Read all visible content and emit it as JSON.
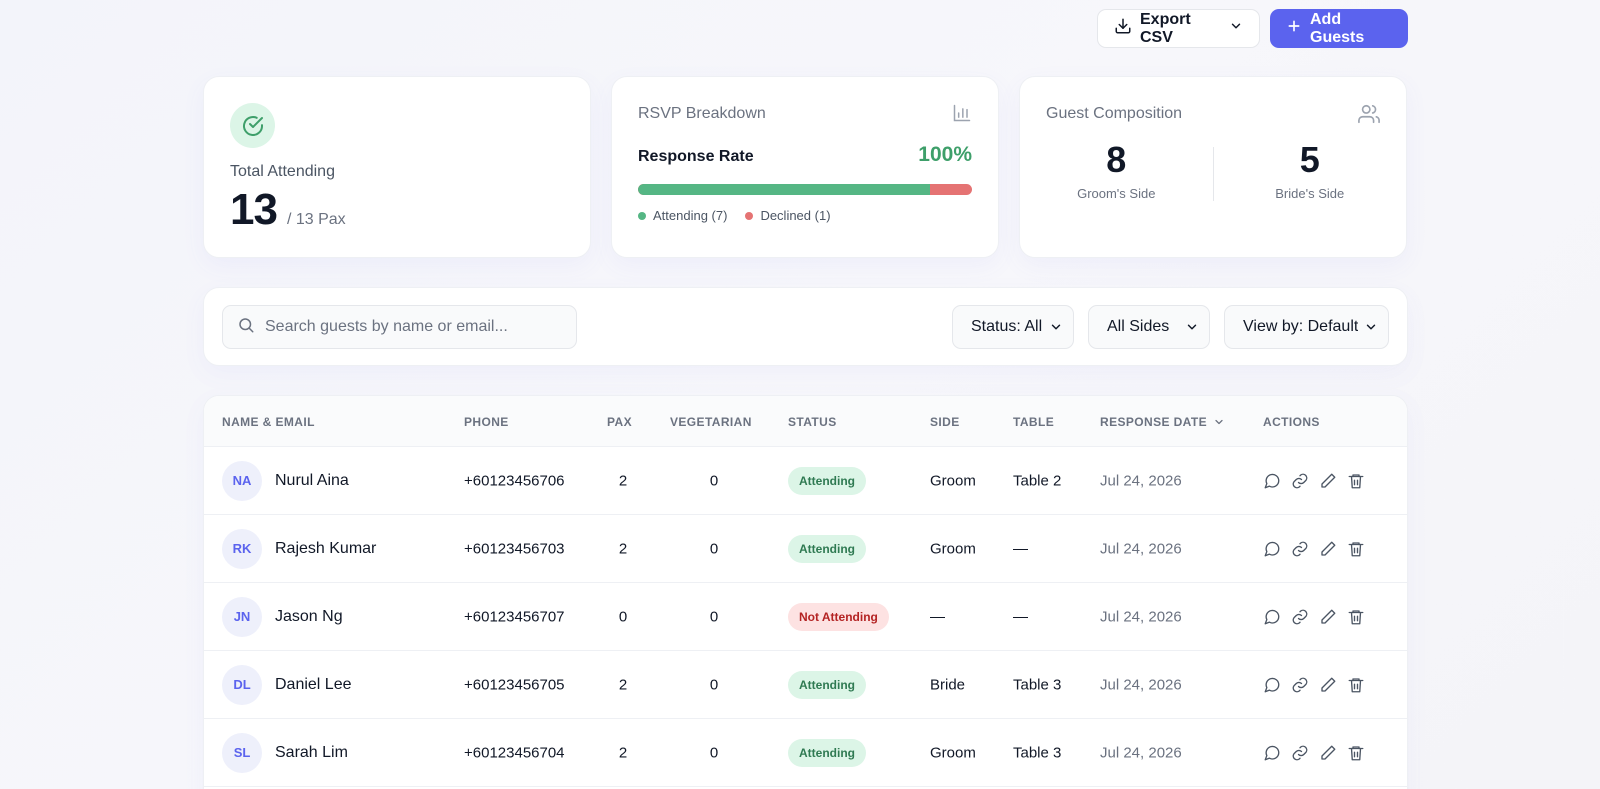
{
  "toolbar": {
    "export_label": "Export CSV",
    "add_label": "Add Guests"
  },
  "stats": {
    "attending": {
      "label": "Total Attending",
      "value": "13",
      "sub": "/ 13 Pax"
    },
    "rsvp": {
      "title": "RSVP Breakdown",
      "rate_label": "Response Rate",
      "rate_value": "100%",
      "attending_fraction": 0.875,
      "attending_legend": "Attending (7)",
      "declined_legend": "Declined (1)",
      "attending_color": "#55b684",
      "declined_color": "#e57373"
    },
    "composition": {
      "title": "Guest Composition",
      "groom_count": "8",
      "groom_label": "Groom's Side",
      "bride_count": "5",
      "bride_label": "Bride's Side"
    }
  },
  "filters": {
    "search_placeholder": "Search guests by name or email...",
    "status": "Status: All",
    "side": "All Sides",
    "view": "View by: Default"
  },
  "table": {
    "headers": {
      "name": "NAME & EMAIL",
      "phone": "PHONE",
      "pax": "PAX",
      "veg": "VEGETARIAN",
      "status": "STATUS",
      "side": "SIDE",
      "table": "TABLE",
      "date": "RESPONSE DATE",
      "actions": "ACTIONS"
    },
    "rows": [
      {
        "initials": "NA",
        "name": "Nurul Aina",
        "phone": "+60123456706",
        "pax": "2",
        "veg": "0",
        "status": "Attending",
        "side": "Groom",
        "table": "Table 2",
        "date": "Jul 24, 2026"
      },
      {
        "initials": "RK",
        "name": "Rajesh Kumar",
        "phone": "+60123456703",
        "pax": "2",
        "veg": "0",
        "status": "Attending",
        "side": "Groom",
        "table": "—",
        "date": "Jul 24, 2026"
      },
      {
        "initials": "JN",
        "name": "Jason Ng",
        "phone": "+60123456707",
        "pax": "0",
        "veg": "0",
        "status": "Not Attending",
        "side": "—",
        "table": "—",
        "date": "Jul 24, 2026"
      },
      {
        "initials": "DL",
        "name": "Daniel Lee",
        "phone": "+60123456705",
        "pax": "2",
        "veg": "0",
        "status": "Attending",
        "side": "Bride",
        "table": "Table 3",
        "date": "Jul 24, 2026"
      },
      {
        "initials": "SL",
        "name": "Sarah Lim",
        "phone": "+60123456704",
        "pax": "2",
        "veg": "0",
        "status": "Attending",
        "side": "Groom",
        "table": "Table 3",
        "date": "Jul 24, 2026"
      }
    ]
  },
  "colors": {
    "accent": "#5b63ee",
    "success": "#3e9f6a",
    "danger": "#e57373"
  }
}
